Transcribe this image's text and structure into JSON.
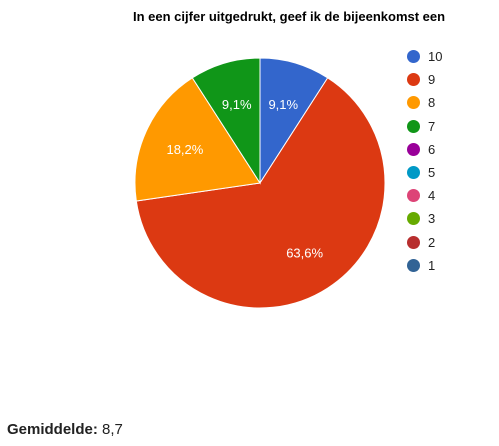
{
  "chart_data": {
    "type": "pie",
    "title": "In een cijfer uitgedrukt, geef ik de bijeenkomst een",
    "slices": [
      {
        "label": "10",
        "value": 9.1,
        "color": "#3366cc",
        "value_label": "9,1%"
      },
      {
        "label": "9",
        "value": 63.6,
        "color": "#dc3912",
        "value_label": "63,6%"
      },
      {
        "label": "8",
        "value": 18.2,
        "color": "#ff9900",
        "value_label": "18,2%"
      },
      {
        "label": "7",
        "value": 9.1,
        "color": "#109618",
        "value_label": "9,1%"
      },
      {
        "label": "6",
        "value": 0,
        "color": "#990099",
        "value_label": ""
      },
      {
        "label": "5",
        "value": 0,
        "color": "#0099c6",
        "value_label": ""
      },
      {
        "label": "4",
        "value": 0,
        "color": "#dd4477",
        "value_label": ""
      },
      {
        "label": "3",
        "value": 0,
        "color": "#66aa00",
        "value_label": ""
      },
      {
        "label": "2",
        "value": 0,
        "color": "#b82e2e",
        "value_label": ""
      },
      {
        "label": "1",
        "value": 0,
        "color": "#316395",
        "value_label": ""
      }
    ],
    "legend": "right"
  },
  "average": {
    "label": "Gemiddelde:",
    "value": "8,7"
  }
}
